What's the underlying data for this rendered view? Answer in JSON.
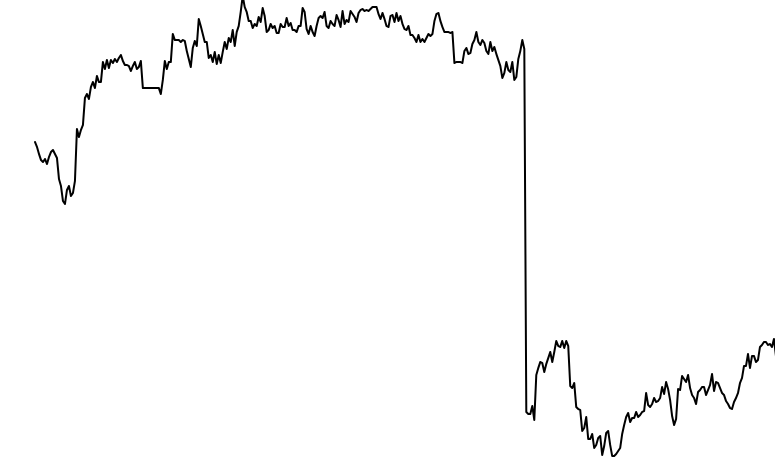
{
  "chart_data": {
    "type": "line",
    "title": "",
    "xlabel": "",
    "ylabel": "",
    "grid": false,
    "legend": "none",
    "axes_visible": false,
    "line_color": "#000000",
    "xlim": [
      0,
      353
    ],
    "ylim": [
      0,
      462
    ],
    "series": [
      {
        "values": [
          320,
          315,
          308,
          302,
          300,
          303,
          298,
          305,
          310,
          312,
          308,
          304,
          283,
          276,
          261,
          258,
          272,
          276,
          266,
          269,
          281,
          333,
          325,
          332,
          337,
          364,
          368,
          363,
          375,
          380,
          374,
          386,
          380,
          380,
          400,
          393,
          402,
          394,
          402,
          399,
          403,
          400,
          404,
          407,
          401,
          397,
          397,
          396,
          391,
          396,
          400,
          393,
          395,
          401,
          374,
          374,
          374,
          374,
          374,
          374,
          374,
          374,
          374,
          368,
          382,
          401,
          393,
          400,
          400,
          428,
          422,
          422,
          422,
          420,
          422,
          421,
          411,
          403,
          395,
          414,
          421,
          416,
          443,
          436,
          428,
          420,
          420,
          404,
          407,
          400,
          410,
          398,
          407,
          399,
          410,
          420,
          413,
          424,
          420,
          432,
          416,
          430,
          436,
          450,
          466,
          455,
          450,
          441,
          441,
          434,
          438,
          436,
          445,
          440,
          454,
          446,
          430,
          432,
          438,
          434,
          436,
          429,
          429,
          438,
          435,
          435,
          444,
          436,
          439,
          432,
          432,
          430,
          436,
          436,
          454,
          450,
          433,
          428,
          436,
          430,
          426,
          436,
          444,
          446,
          444,
          450,
          436,
          434,
          441,
          438,
          436,
          447,
          442,
          435,
          451,
          438,
          442,
          440,
          451,
          448,
          445,
          440,
          449,
          452,
          453,
          451,
          452,
          451,
          453,
          455,
          455,
          455,
          448,
          443,
          449,
          443,
          436,
          435,
          446,
          447,
          440,
          449,
          441,
          446,
          438,
          433,
          432,
          436,
          427,
          427,
          424,
          420,
          427,
          420,
          423,
          420,
          424,
          428,
          426,
          428,
          441,
          448,
          449,
          441,
          435,
          430,
          430,
          430,
          429,
          430,
          399,
          400,
          400,
          400,
          399,
          411,
          414,
          408,
          409,
          418,
          422,
          430,
          420,
          417,
          422,
          419,
          411,
          408,
          420,
          411,
          415,
          408,
          402,
          396,
          384,
          389,
          400,
          392,
          390,
          400,
          382,
          385,
          403,
          411,
          422,
          413,
          50,
          48,
          48,
          56,
          42,
          87,
          94,
          100,
          99,
          90,
          98,
          104,
          110,
          100,
          110,
          121,
          116,
          115,
          121,
          114,
          121,
          116,
          76,
          74,
          79,
          55,
          53,
          52,
          31,
          34,
          45,
          23,
          23,
          28,
          14,
          17,
          24,
          26,
          7,
          16,
          29,
          31,
          17,
          6,
          6,
          8,
          11,
          14,
          28,
          37,
          45,
          49,
          40,
          44,
          44,
          50,
          45,
          47,
          50,
          51,
          69,
          57,
          55,
          58,
          64,
          60,
          61,
          64,
          75,
          68,
          80,
          73,
          62,
          46,
          37,
          43,
          73,
          72,
          86,
          83,
          80,
          87,
          74,
          67,
          64,
          58,
          70,
          72,
          75,
          75,
          67,
          72,
          77,
          88,
          71,
          80,
          79,
          74,
          69,
          67,
          61,
          58,
          54,
          53,
          60,
          64,
          69,
          79,
          84,
          96,
          96,
          108,
          94,
          106,
          106,
          100,
          102,
          115,
          117,
          120,
          120,
          117,
          118,
          115,
          123,
          106,
          96,
          104,
          114,
          113,
          109,
          109,
          115
        ]
      }
    ]
  }
}
